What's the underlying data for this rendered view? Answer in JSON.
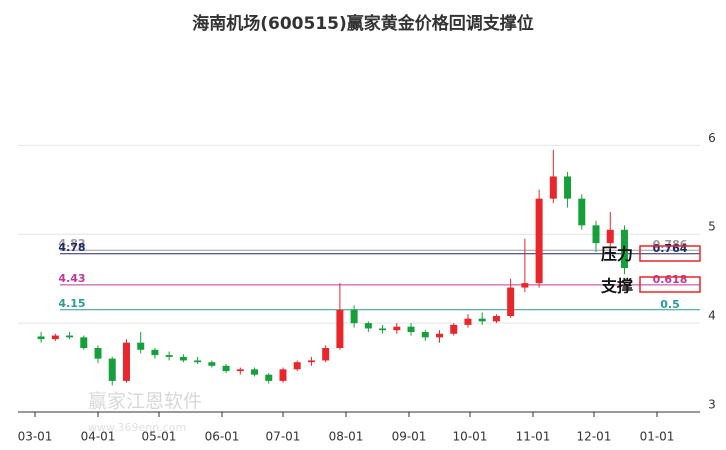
{
  "chart_data": {
    "type": "candlestick",
    "title": "海南机场(600515)赢家黄金价格回调支撑位",
    "x": [
      "03-04",
      "03-11",
      "03-18",
      "03-25",
      "04-01",
      "04-08",
      "04-15",
      "04-22",
      "04-29",
      "05-06",
      "05-13",
      "05-20",
      "05-27",
      "06-03",
      "06-10",
      "06-17",
      "06-24",
      "07-01",
      "07-08",
      "07-15",
      "07-22",
      "07-29",
      "08-05",
      "08-12",
      "08-19",
      "08-26",
      "09-02",
      "09-09",
      "09-16",
      "09-23",
      "09-30",
      "10-07",
      "10-14",
      "10-21",
      "10-28",
      "11-04",
      "11-11",
      "11-18",
      "11-25",
      "12-02",
      "12-09",
      "12-16"
    ],
    "open": [
      3.85,
      3.82,
      3.86,
      3.84,
      3.72,
      3.6,
      3.35,
      3.78,
      3.7,
      3.64,
      3.62,
      3.58,
      3.56,
      3.52,
      3.46,
      3.48,
      3.42,
      3.35,
      3.48,
      3.56,
      3.58,
      3.72,
      4.15,
      4.0,
      3.94,
      3.92,
      3.96,
      3.9,
      3.84,
      3.88,
      3.98,
      4.05,
      4.02,
      4.08,
      4.4,
      4.45,
      5.4,
      5.65,
      5.4,
      5.1,
      4.9,
      5.05
    ],
    "high": [
      3.9,
      3.88,
      3.9,
      3.86,
      3.75,
      3.62,
      3.82,
      3.9,
      3.72,
      3.68,
      3.65,
      3.62,
      3.58,
      3.54,
      3.5,
      3.5,
      3.44,
      3.5,
      3.58,
      3.62,
      3.75,
      4.45,
      4.2,
      4.02,
      3.98,
      4.0,
      4.0,
      3.92,
      3.92,
      4.0,
      4.1,
      4.12,
      4.1,
      4.5,
      4.95,
      5.5,
      5.95,
      5.7,
      5.45,
      5.15,
      5.25,
      5.1
    ],
    "low": [
      3.78,
      3.8,
      3.82,
      3.7,
      3.55,
      3.3,
      3.33,
      3.66,
      3.6,
      3.58,
      3.56,
      3.54,
      3.5,
      3.44,
      3.42,
      3.4,
      3.32,
      3.33,
      3.46,
      3.52,
      3.56,
      3.7,
      3.95,
      3.9,
      3.88,
      3.88,
      3.86,
      3.8,
      3.78,
      3.86,
      3.95,
      3.98,
      4.0,
      4.06,
      4.35,
      4.4,
      5.35,
      5.3,
      5.05,
      4.8,
      4.75,
      4.55
    ],
    "close": [
      3.82,
      3.86,
      3.84,
      3.72,
      3.6,
      3.35,
      3.78,
      3.7,
      3.64,
      3.62,
      3.58,
      3.56,
      3.52,
      3.46,
      3.48,
      3.42,
      3.35,
      3.48,
      3.56,
      3.58,
      3.72,
      4.15,
      4.0,
      3.94,
      3.92,
      3.96,
      3.9,
      3.84,
      3.88,
      3.98,
      4.05,
      4.02,
      4.08,
      4.4,
      4.45,
      5.4,
      5.65,
      5.4,
      5.1,
      4.9,
      5.05,
      4.62
    ],
    "up_color": "#e8262b",
    "down_color": "#16a03c",
    "ylim": [
      3,
      6.6
    ],
    "yticks": [
      3,
      4,
      5,
      6
    ],
    "xticks": [
      "03-01",
      "04-01",
      "05-01",
      "06-01",
      "07-01",
      "08-01",
      "09-01",
      "10-01",
      "11-01",
      "12-01",
      "01-01"
    ],
    "levels": [
      {
        "value": 4.82,
        "price_label": "4.82",
        "ratio_label": "0.786",
        "color": "#9a9a9a"
      },
      {
        "value": 4.78,
        "price_label": "4.78",
        "ratio_label": "0.764",
        "color": "#1f2a6b"
      },
      {
        "value": 4.43,
        "price_label": "4.43",
        "ratio_label": "0.618",
        "color": "#c2389a"
      },
      {
        "value": 4.15,
        "price_label": "4.15",
        "ratio_label": "0.5",
        "color": "#2a9a9a"
      }
    ],
    "resistance_label": "压力",
    "support_label": "支撑",
    "watermark": "赢家江恩软件",
    "watermark_url": "www.369enn.com"
  }
}
